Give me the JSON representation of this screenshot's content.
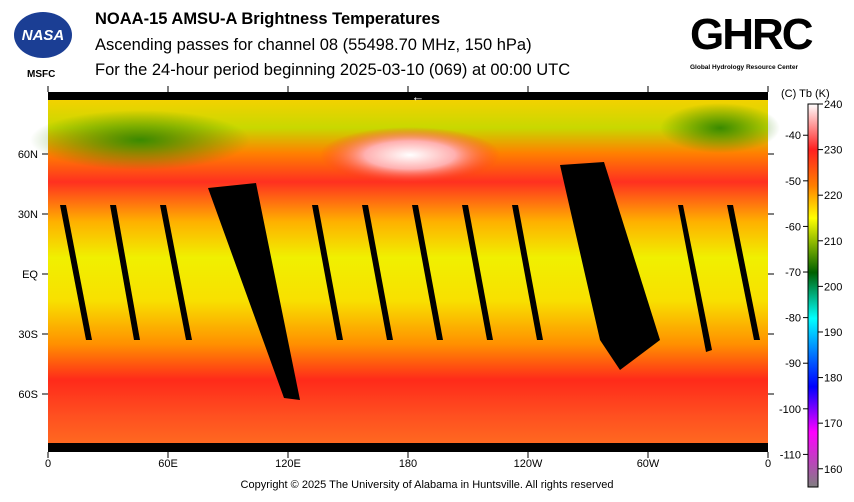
{
  "header": {
    "title": "NOAA-15 AMSU-A Brightness Temperatures",
    "subtitle": "Ascending passes for channel 08 (55498.70 MHz, 150 hPa)",
    "period": "For the 24-hour period beginning 2025-03-10 (069) at 00:00 UTC",
    "logo_left": "NASA",
    "logo_left_sub": "MSFC",
    "logo_right": "GHRC",
    "logo_right_sub": "Global Hydrology Resource Center"
  },
  "footer": {
    "copyright": "Copyright © 2025 The University of Alabama in Huntsville.  All rights reserved"
  },
  "chart_data": {
    "type": "heatmap",
    "title": "NOAA-15 AMSU-A Brightness Temperatures",
    "x_ticks": [
      "0",
      "60E",
      "120E",
      "180",
      "120W",
      "60W",
      "0"
    ],
    "y_ticks": [
      "60N",
      "30N",
      "EQ",
      "30S",
      "60S"
    ],
    "colorbar": {
      "header": "(C)  Tb  (K)",
      "kelvin_ticks": [
        "240",
        "230",
        "220",
        "210",
        "200",
        "190",
        "180",
        "170",
        "160"
      ],
      "celsius_ticks": [
        "-40",
        "-50",
        "-60",
        "-70",
        "-80",
        "-90",
        "-100",
        "-110"
      ],
      "range_K": [
        156,
        240
      ],
      "stops": [
        {
          "k": 240,
          "color": "#ffffff"
        },
        {
          "k": 230,
          "color": "#ff2020"
        },
        {
          "k": 222,
          "color": "#ff8000"
        },
        {
          "k": 215,
          "color": "#ffff00"
        },
        {
          "k": 203,
          "color": "#006000"
        },
        {
          "k": 193,
          "color": "#00ffff"
        },
        {
          "k": 183,
          "color": "#0050ff"
        },
        {
          "k": 178,
          "color": "#0000ff"
        },
        {
          "k": 168,
          "color": "#ff00ff"
        },
        {
          "k": 156,
          "color": "#808080"
        }
      ]
    },
    "arrow": "←"
  }
}
